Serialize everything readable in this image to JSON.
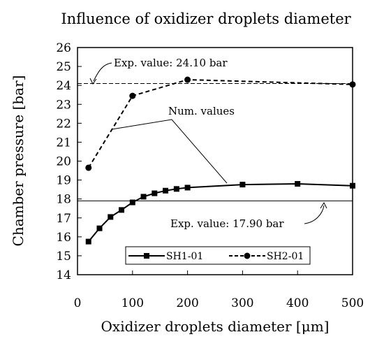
{
  "chart_data": {
    "type": "line",
    "title": "Influence of oxidizer droplets diameter",
    "xlabel": "Oxidizer droplets diameter [μm]",
    "ylabel": "Chamber pressure [bar]",
    "xlim": [
      0,
      500
    ],
    "ylim": [
      14,
      26
    ],
    "xticks": [
      "0",
      "100",
      "200",
      "300",
      "400",
      "500"
    ],
    "yticks": [
      "14",
      "15",
      "16",
      "17",
      "18",
      "19",
      "20",
      "21",
      "22",
      "23",
      "24",
      "25",
      "26"
    ],
    "grid": false,
    "legend_position": "bottom",
    "series": [
      {
        "name": "SH1-01",
        "style": "solid",
        "marker": "square",
        "x": [
          20,
          40,
          60,
          80,
          100,
          120,
          140,
          160,
          180,
          200,
          300,
          400,
          500
        ],
        "y": [
          15.75,
          16.45,
          17.05,
          17.42,
          17.82,
          18.12,
          18.3,
          18.44,
          18.53,
          18.6,
          18.76,
          18.8,
          18.7
        ]
      },
      {
        "name": "SH2-01",
        "style": "dashed",
        "marker": "circle",
        "x": [
          20,
          100,
          200,
          500
        ],
        "y": [
          19.65,
          23.45,
          24.3,
          24.05
        ]
      }
    ],
    "reference_lines": [
      {
        "y": 24.1,
        "label": "Exp. value: 24.10 bar",
        "style": "dashed"
      },
      {
        "y": 17.9,
        "label": "Exp. value: 17.90 bar",
        "style": "solid"
      }
    ],
    "annotations": [
      {
        "text": "Num. values"
      }
    ]
  }
}
